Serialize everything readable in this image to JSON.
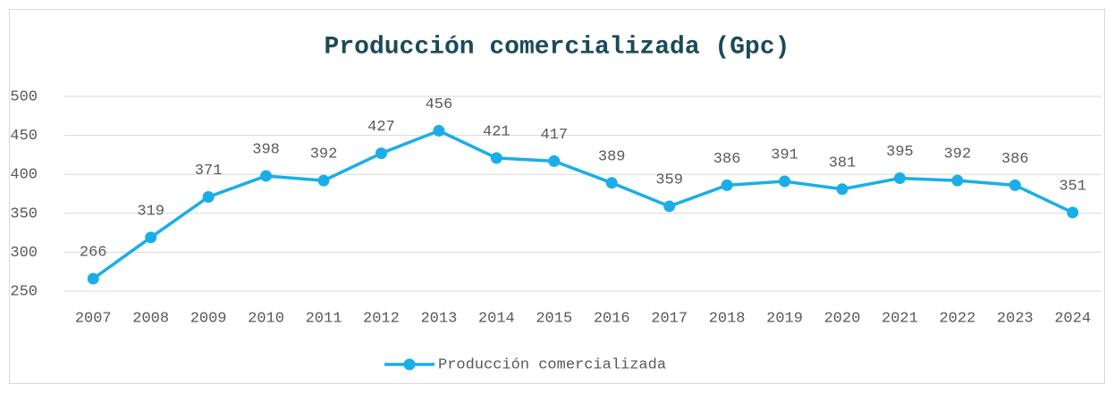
{
  "chart_data": {
    "type": "line",
    "title": "Producción comercializada (Gpc)",
    "categories": [
      "2007",
      "2008",
      "2009",
      "2010",
      "2011",
      "2012",
      "2013",
      "2014",
      "2015",
      "2016",
      "2017",
      "2018",
      "2019",
      "2020",
      "2021",
      "2022",
      "2023",
      "2024"
    ],
    "series": [
      {
        "name": "Producción comercializada",
        "color": "#1aaee8",
        "values": [
          266,
          319,
          371,
          398,
          392,
          427,
          456,
          421,
          417,
          389,
          359,
          386,
          391,
          381,
          395,
          392,
          386,
          351
        ]
      }
    ],
    "ylim": [
      250,
      500
    ],
    "yticks": [
      250,
      300,
      350,
      400,
      450,
      500
    ],
    "grid": true,
    "legend": "bottom",
    "data_labels": true
  }
}
